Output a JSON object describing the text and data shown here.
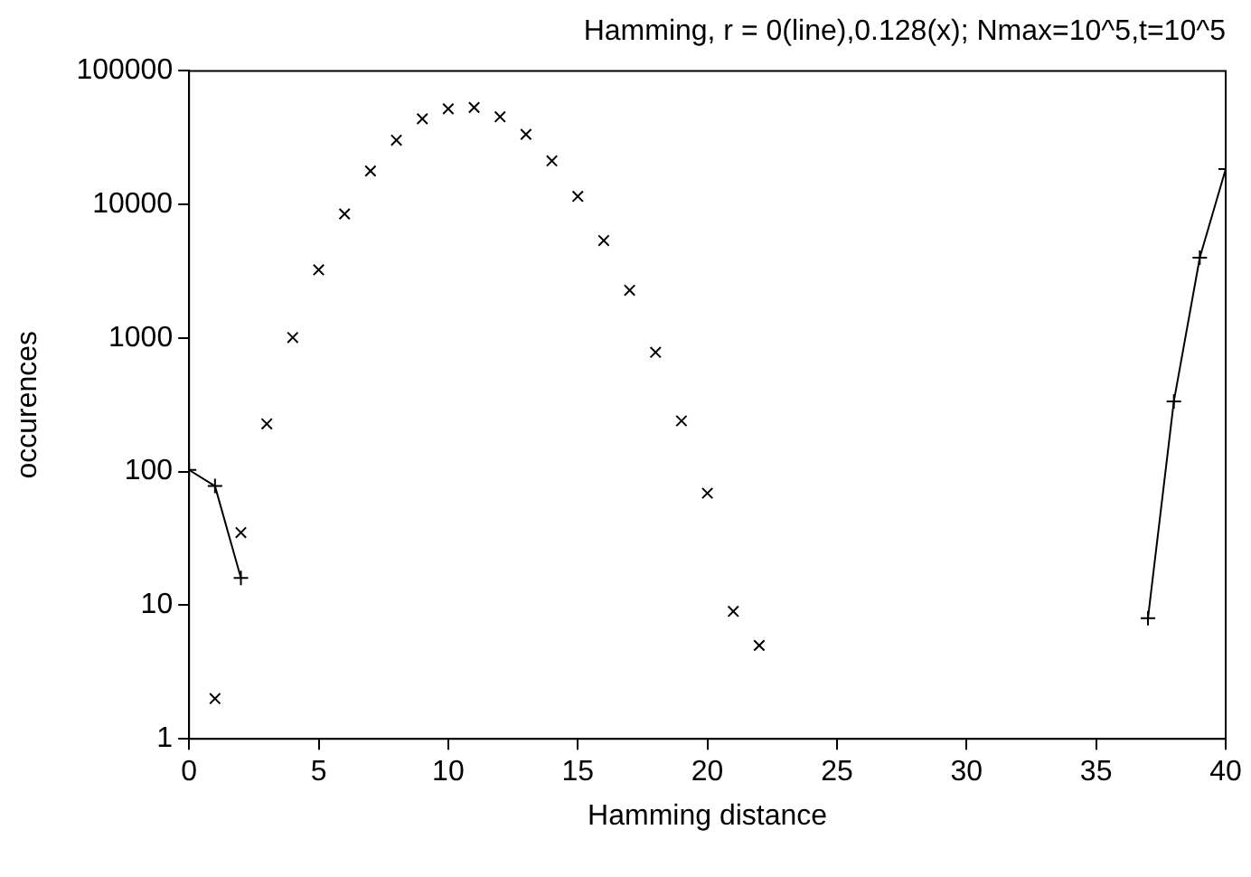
{
  "chart_data": {
    "type": "scatter",
    "title": "Hamming, r = 0(line),0.128(x); Nmax=10^5,t=10^5",
    "xlabel": "Hamming distance",
    "ylabel": "occurences",
    "log": "y",
    "grid": false,
    "legend": false,
    "marker": "cross",
    "xlim": [
      0,
      40
    ],
    "xticks": [
      0,
      5,
      10,
      15,
      20,
      25,
      30,
      35,
      40
    ],
    "ylim": [
      1,
      100000
    ],
    "yticks": [
      1,
      10,
      100,
      1000,
      10000,
      100000
    ],
    "series": [
      {
        "type": "line",
        "color": "#000000",
        "x": [
          0,
          1,
          2,
          3,
          37,
          38,
          39,
          40
        ],
        "values": [
          103,
          78,
          16,
          null,
          8,
          336,
          4000,
          18400
        ]
      },
      {
        "type": "scatter",
        "color": "#000000",
        "x": [
          1,
          2,
          3,
          4,
          5,
          6,
          7,
          8,
          9,
          10,
          11,
          12,
          13,
          14,
          15,
          16,
          17,
          18,
          19,
          20,
          21,
          22
        ],
        "values": [
          2,
          35,
          228,
          1010,
          3240,
          8500,
          17800,
          30300,
          43800,
          52000,
          53200,
          45300,
          33500,
          21200,
          11500,
          5370,
          2280,
          782,
          240,
          69,
          9,
          5
        ]
      }
    ]
  }
}
